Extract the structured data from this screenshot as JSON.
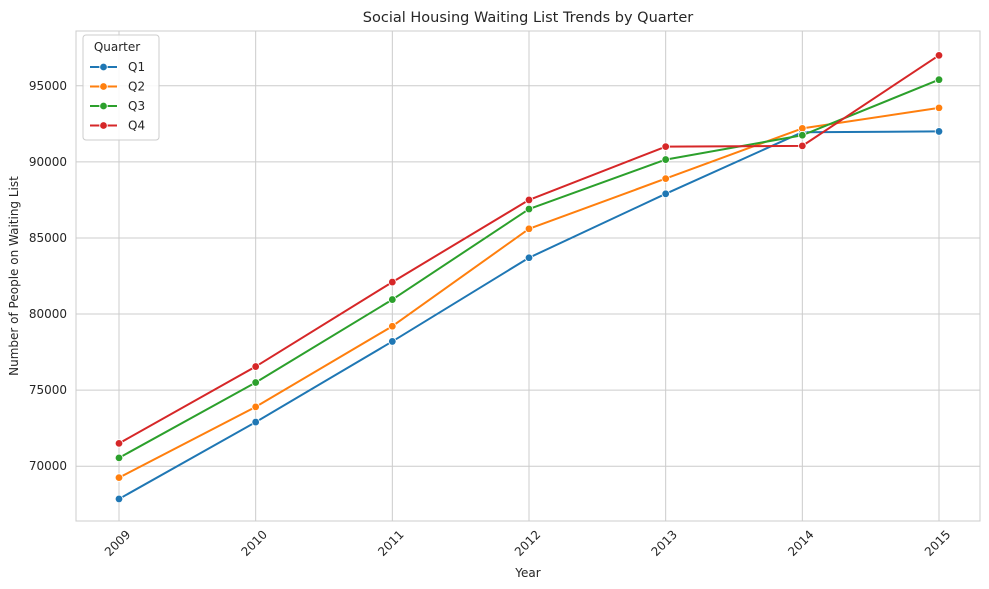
{
  "chart_data": {
    "type": "line",
    "title": "Social Housing Waiting List Trends by Quarter",
    "xlabel": "Year",
    "ylabel": "Number of People on Waiting List",
    "categories": [
      "2009",
      "2010",
      "2011",
      "2012",
      "2013",
      "2014",
      "2015"
    ],
    "ylim": [
      66400,
      98600
    ],
    "yticks": [
      70000,
      75000,
      80000,
      85000,
      90000,
      95000
    ],
    "grid": true,
    "legend": {
      "title": "Quarter",
      "placement": "top-left"
    },
    "series": [
      {
        "name": "Q1",
        "color": "#1f77b4",
        "values": [
          67850,
          72900,
          78200,
          83700,
          87900,
          91950,
          92000
        ]
      },
      {
        "name": "Q2",
        "color": "#ff7f0e",
        "values": [
          69250,
          73900,
          79200,
          85600,
          88900,
          92200,
          93550
        ]
      },
      {
        "name": "Q3",
        "color": "#2ca02c",
        "values": [
          70550,
          75500,
          80950,
          86900,
          90150,
          91750,
          95400
        ]
      },
      {
        "name": "Q4",
        "color": "#d62728",
        "values": [
          71500,
          76550,
          82100,
          87500,
          91000,
          91050,
          97000
        ]
      }
    ]
  }
}
